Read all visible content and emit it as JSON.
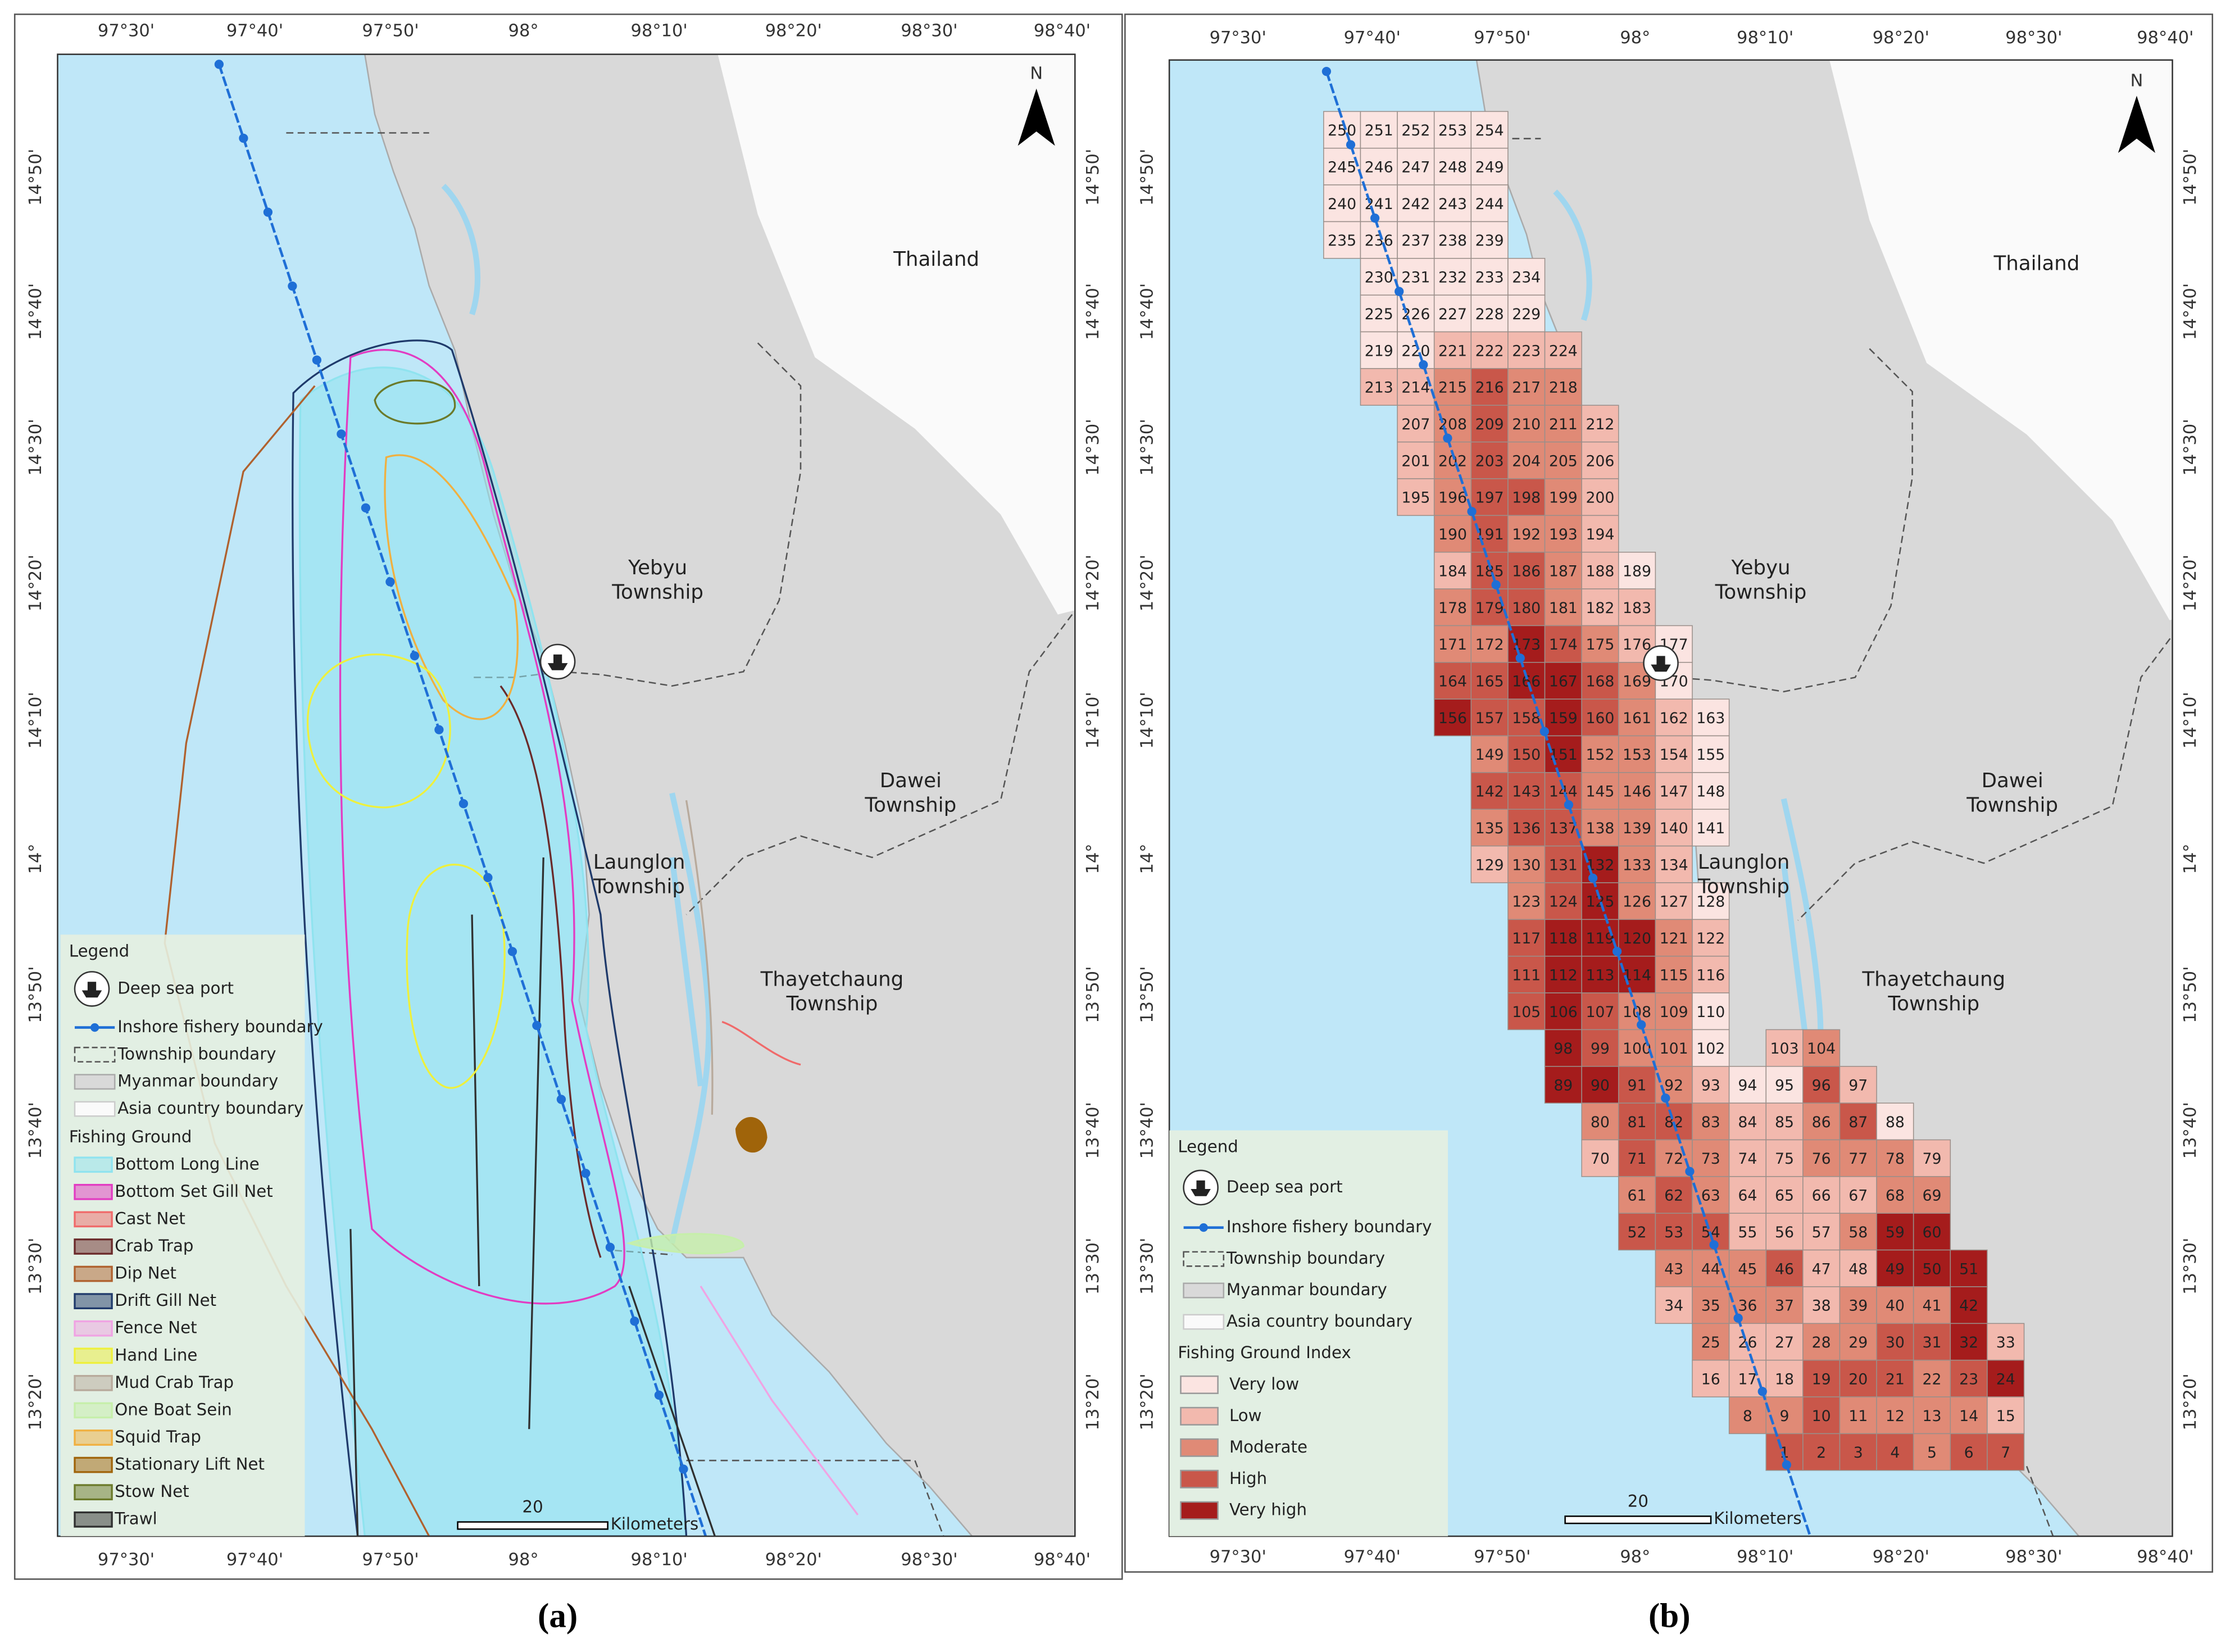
{
  "lon_ticks": [
    "97°30'",
    "97°40'",
    "97°50'",
    "98°",
    "98°10'",
    "98°20'",
    "98°30'",
    "98°40'"
  ],
  "lat_ticks": [
    "14°50'",
    "14°40'",
    "14°30'",
    "14°20'",
    "14°10'",
    "14°",
    "13°50'",
    "13°40'",
    "13°30'",
    "13°20'"
  ],
  "places": {
    "thailand": [
      "Thailand"
    ],
    "yebyu": [
      "Yebyu",
      "Township"
    ],
    "dawei": [
      "Dawei",
      "Township"
    ],
    "launglon": [
      "Launglon",
      "Township"
    ],
    "thayetchaung": [
      "Thayetchaung",
      "Township"
    ]
  },
  "north": "N",
  "scale": {
    "distance": 20,
    "unit": "Kilometers"
  },
  "legend": {
    "title": "Legend",
    "items": [
      "Deep sea port",
      "Inshore fishery boundary",
      "Township boundary",
      "Myanmar boundary",
      "Asia country boundary"
    ]
  },
  "panel_a": {
    "caption": "(a)",
    "fishing_ground_title": "Fishing Ground",
    "fishing_grounds": [
      {
        "name": "Bottom Long Line",
        "color": "#8fe3ef"
      },
      {
        "name": "Bottom Set Gill Net",
        "color": "#e23cc2"
      },
      {
        "name": "Cast Net",
        "color": "#f06a6a"
      },
      {
        "name": "Crab Trap",
        "color": "#6b2a2a"
      },
      {
        "name": "Dip Net",
        "color": "#b0612e"
      },
      {
        "name": "Drift Gill Net",
        "color": "#1f3a6b"
      },
      {
        "name": "Fence Net",
        "color": "#f0a3e3"
      },
      {
        "name": "Hand Line",
        "color": "#eef03c"
      },
      {
        "name": "Mud Crab Trap",
        "color": "#b8aa9c"
      },
      {
        "name": "One Boat Sein",
        "color": "#c6efaa"
      },
      {
        "name": "Squid Trap",
        "color": "#f0b040"
      },
      {
        "name": "Stationary Lift Net",
        "color": "#a0640a"
      },
      {
        "name": "Stow Net",
        "color": "#6b7a2a"
      },
      {
        "name": "Trawl",
        "color": "#303030"
      }
    ]
  },
  "panel_b": {
    "caption": "(b)",
    "index_title": "Fishing Ground Index",
    "index_classes": [
      {
        "name": "Very low",
        "color": "#fbe4e1"
      },
      {
        "name": "Low",
        "color": "#f2b9ae"
      },
      {
        "name": "Moderate",
        "color": "#e08a76"
      },
      {
        "name": "High",
        "color": "#c9574a"
      },
      {
        "name": "Very high",
        "color": "#a51c1c"
      }
    ],
    "grid_rows": [
      [
        [
          250,
          0
        ],
        [
          251,
          0
        ],
        [
          252,
          0
        ],
        [
          253,
          0
        ],
        [
          254,
          0
        ]
      ],
      [
        [
          245,
          0
        ],
        [
          246,
          0
        ],
        [
          247,
          0
        ],
        [
          248,
          0
        ],
        [
          249,
          0
        ]
      ],
      [
        [
          240,
          0
        ],
        [
          241,
          0
        ],
        [
          242,
          0
        ],
        [
          243,
          0
        ],
        [
          244,
          0
        ]
      ],
      [
        [
          235,
          0
        ],
        [
          236,
          0
        ],
        [
          237,
          0
        ],
        [
          238,
          0
        ],
        [
          239,
          0
        ]
      ],
      [
        [
          230,
          0
        ],
        [
          231,
          0
        ],
        [
          232,
          0
        ],
        [
          233,
          0
        ],
        [
          234,
          0
        ]
      ],
      [
        [
          225,
          0
        ],
        [
          226,
          0
        ],
        [
          227,
          0
        ],
        [
          228,
          0
        ],
        [
          229,
          0
        ]
      ],
      [
        [
          219,
          0
        ],
        [
          220,
          0
        ],
        [
          221,
          1
        ],
        [
          222,
          1
        ],
        [
          223,
          1
        ],
        [
          224,
          1
        ]
      ],
      [
        [
          213,
          1
        ],
        [
          214,
          1
        ],
        [
          215,
          2
        ],
        [
          216,
          3
        ],
        [
          217,
          2
        ],
        [
          218,
          2
        ]
      ],
      [
        [
          207,
          1
        ],
        [
          208,
          2
        ],
        [
          209,
          3
        ],
        [
          210,
          2
        ],
        [
          211,
          2
        ],
        [
          212,
          1
        ]
      ],
      [
        [
          201,
          1
        ],
        [
          202,
          2
        ],
        [
          203,
          3
        ],
        [
          204,
          2
        ],
        [
          205,
          2
        ],
        [
          206,
          1
        ]
      ],
      [
        [
          195,
          1
        ],
        [
          196,
          2
        ],
        [
          197,
          3
        ],
        [
          198,
          3
        ],
        [
          199,
          2
        ],
        [
          200,
          1
        ]
      ],
      [
        [
          190,
          2
        ],
        [
          191,
          3
        ],
        [
          192,
          2
        ],
        [
          193,
          2
        ],
        [
          194,
          1
        ]
      ],
      [
        [
          184,
          1
        ],
        [
          185,
          3
        ],
        [
          186,
          3
        ],
        [
          187,
          2
        ],
        [
          188,
          1
        ],
        [
          189,
          0
        ]
      ],
      [
        [
          178,
          2
        ],
        [
          179,
          3
        ],
        [
          180,
          3
        ],
        [
          181,
          2
        ],
        [
          182,
          1
        ],
        [
          183,
          1
        ]
      ],
      [
        [
          171,
          2
        ],
        [
          172,
          2
        ],
        [
          173,
          4
        ],
        [
          174,
          3
        ],
        [
          175,
          2
        ],
        [
          176,
          1
        ],
        [
          177,
          0
        ]
      ],
      [
        [
          164,
          3
        ],
        [
          165,
          3
        ],
        [
          166,
          4
        ],
        [
          167,
          4
        ],
        [
          168,
          3
        ],
        [
          169,
          2
        ],
        [
          170,
          0
        ]
      ],
      [
        [
          156,
          4
        ],
        [
          157,
          3
        ],
        [
          158,
          3
        ],
        [
          159,
          4
        ],
        [
          160,
          3
        ],
        [
          161,
          2
        ],
        [
          162,
          1
        ],
        [
          163,
          0
        ]
      ],
      [
        [
          149,
          2
        ],
        [
          150,
          3
        ],
        [
          151,
          4
        ],
        [
          152,
          2
        ],
        [
          153,
          2
        ],
        [
          154,
          1
        ],
        [
          155,
          0
        ]
      ],
      [
        [
          142,
          3
        ],
        [
          143,
          3
        ],
        [
          144,
          3
        ],
        [
          145,
          2
        ],
        [
          146,
          2
        ],
        [
          147,
          1
        ],
        [
          148,
          0
        ]
      ],
      [
        [
          135,
          2
        ],
        [
          136,
          3
        ],
        [
          137,
          3
        ],
        [
          138,
          2
        ],
        [
          139,
          2
        ],
        [
          140,
          1
        ],
        [
          141,
          0
        ]
      ],
      [
        [
          129,
          1
        ],
        [
          130,
          2
        ],
        [
          131,
          3
        ],
        [
          132,
          4
        ],
        [
          133,
          2
        ],
        [
          134,
          1
        ]
      ],
      [
        [
          123,
          2
        ],
        [
          124,
          3
        ],
        [
          125,
          4
        ],
        [
          126,
          2
        ],
        [
          127,
          1
        ],
        [
          128,
          0
        ]
      ],
      [
        [
          117,
          3
        ],
        [
          118,
          4
        ],
        [
          119,
          4
        ],
        [
          120,
          4
        ],
        [
          121,
          2
        ],
        [
          122,
          1
        ]
      ],
      [
        [
          111,
          3
        ],
        [
          112,
          4
        ],
        [
          113,
          4
        ],
        [
          114,
          4
        ],
        [
          115,
          2
        ],
        [
          116,
          1
        ]
      ],
      [
        [
          105,
          3
        ],
        [
          106,
          4
        ],
        [
          107,
          3
        ],
        [
          108,
          2
        ],
        [
          109,
          2
        ],
        [
          110,
          0
        ]
      ],
      [
        [
          98,
          4
        ],
        [
          99,
          3
        ],
        [
          100,
          2
        ],
        [
          101,
          2
        ],
        [
          102,
          0
        ],
        [
          103,
          1
        ],
        [
          104,
          2
        ]
      ],
      [
        [
          89,
          4
        ],
        [
          90,
          4
        ],
        [
          91,
          3
        ],
        [
          92,
          2
        ],
        [
          93,
          1
        ],
        [
          94,
          0
        ],
        [
          95,
          0
        ],
        [
          96,
          3
        ],
        [
          97,
          1
        ]
      ],
      [
        [
          80,
          2
        ],
        [
          81,
          3
        ],
        [
          82,
          3
        ],
        [
          83,
          2
        ],
        [
          84,
          1
        ],
        [
          85,
          1
        ],
        [
          86,
          2
        ],
        [
          87,
          3
        ],
        [
          88,
          0
        ]
      ],
      [
        [
          70,
          1
        ],
        [
          71,
          3
        ],
        [
          72,
          2
        ],
        [
          73,
          2
        ],
        [
          74,
          1
        ],
        [
          75,
          1
        ],
        [
          76,
          2
        ],
        [
          77,
          2
        ],
        [
          78,
          2
        ],
        [
          79,
          1
        ]
      ],
      [
        [
          61,
          2
        ],
        [
          62,
          3
        ],
        [
          63,
          2
        ],
        [
          64,
          1
        ],
        [
          65,
          1
        ],
        [
          66,
          1
        ],
        [
          67,
          1
        ],
        [
          68,
          2
        ],
        [
          69,
          2
        ]
      ],
      [
        [
          52,
          3
        ],
        [
          53,
          3
        ],
        [
          54,
          3
        ],
        [
          55,
          1
        ],
        [
          56,
          1
        ],
        [
          57,
          1
        ],
        [
          58,
          2
        ],
        [
          59,
          4
        ],
        [
          60,
          4
        ]
      ],
      [
        [
          43,
          2
        ],
        [
          44,
          2
        ],
        [
          45,
          2
        ],
        [
          46,
          3
        ],
        [
          47,
          1
        ],
        [
          48,
          1
        ],
        [
          49,
          4
        ],
        [
          50,
          4
        ],
        [
          51,
          4
        ]
      ],
      [
        [
          34,
          1
        ],
        [
          35,
          2
        ],
        [
          36,
          2
        ],
        [
          37,
          2
        ],
        [
          38,
          1
        ],
        [
          39,
          2
        ],
        [
          40,
          2
        ],
        [
          41,
          2
        ],
        [
          42,
          4
        ]
      ],
      [
        [
          25,
          2
        ],
        [
          26,
          1
        ],
        [
          27,
          1
        ],
        [
          28,
          2
        ],
        [
          29,
          2
        ],
        [
          30,
          3
        ],
        [
          31,
          3
        ],
        [
          32,
          4
        ],
        [
          33,
          1
        ]
      ],
      [
        [
          16,
          1
        ],
        [
          17,
          1
        ],
        [
          18,
          1
        ],
        [
          19,
          3
        ],
        [
          20,
          3
        ],
        [
          21,
          3
        ],
        [
          22,
          2
        ],
        [
          23,
          3
        ],
        [
          24,
          4
        ]
      ],
      [
        [
          8,
          2
        ],
        [
          9,
          2
        ],
        [
          10,
          3
        ],
        [
          11,
          2
        ],
        [
          12,
          2
        ],
        [
          13,
          2
        ],
        [
          14,
          2
        ],
        [
          15,
          1
        ]
      ],
      [
        [
          1,
          3
        ],
        [
          2,
          3
        ],
        [
          3,
          3
        ],
        [
          4,
          3
        ],
        [
          5,
          2
        ],
        [
          6,
          3
        ],
        [
          7,
          3
        ]
      ]
    ]
  }
}
